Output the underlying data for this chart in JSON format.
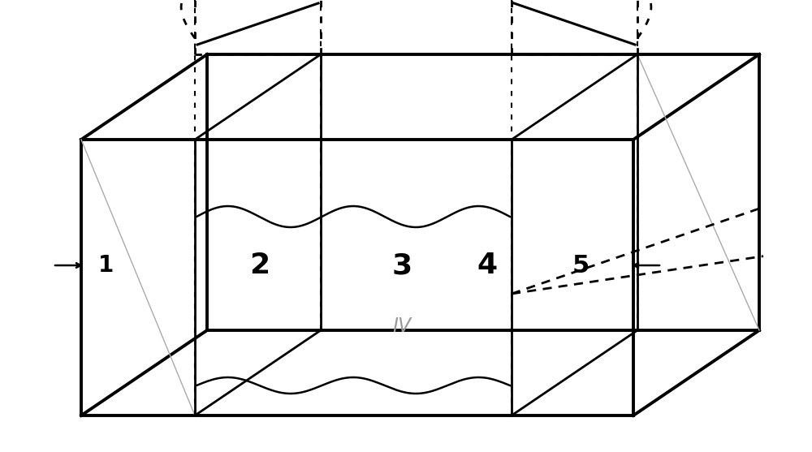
{
  "bg_color": "#ffffff",
  "line_color": "#000000",
  "gray_line": "#aaaaaa",
  "label_1": "1",
  "label_2": "2",
  "label_3": "3",
  "label_4": "4",
  "label_5": "5",
  "label_IV": "IV",
  "label_plus": "+",
  "label_minus": "-",
  "lw_thick": 2.8,
  "lw_med": 2.0,
  "lw_thin": 1.5,
  "lw_dot": 2.0
}
